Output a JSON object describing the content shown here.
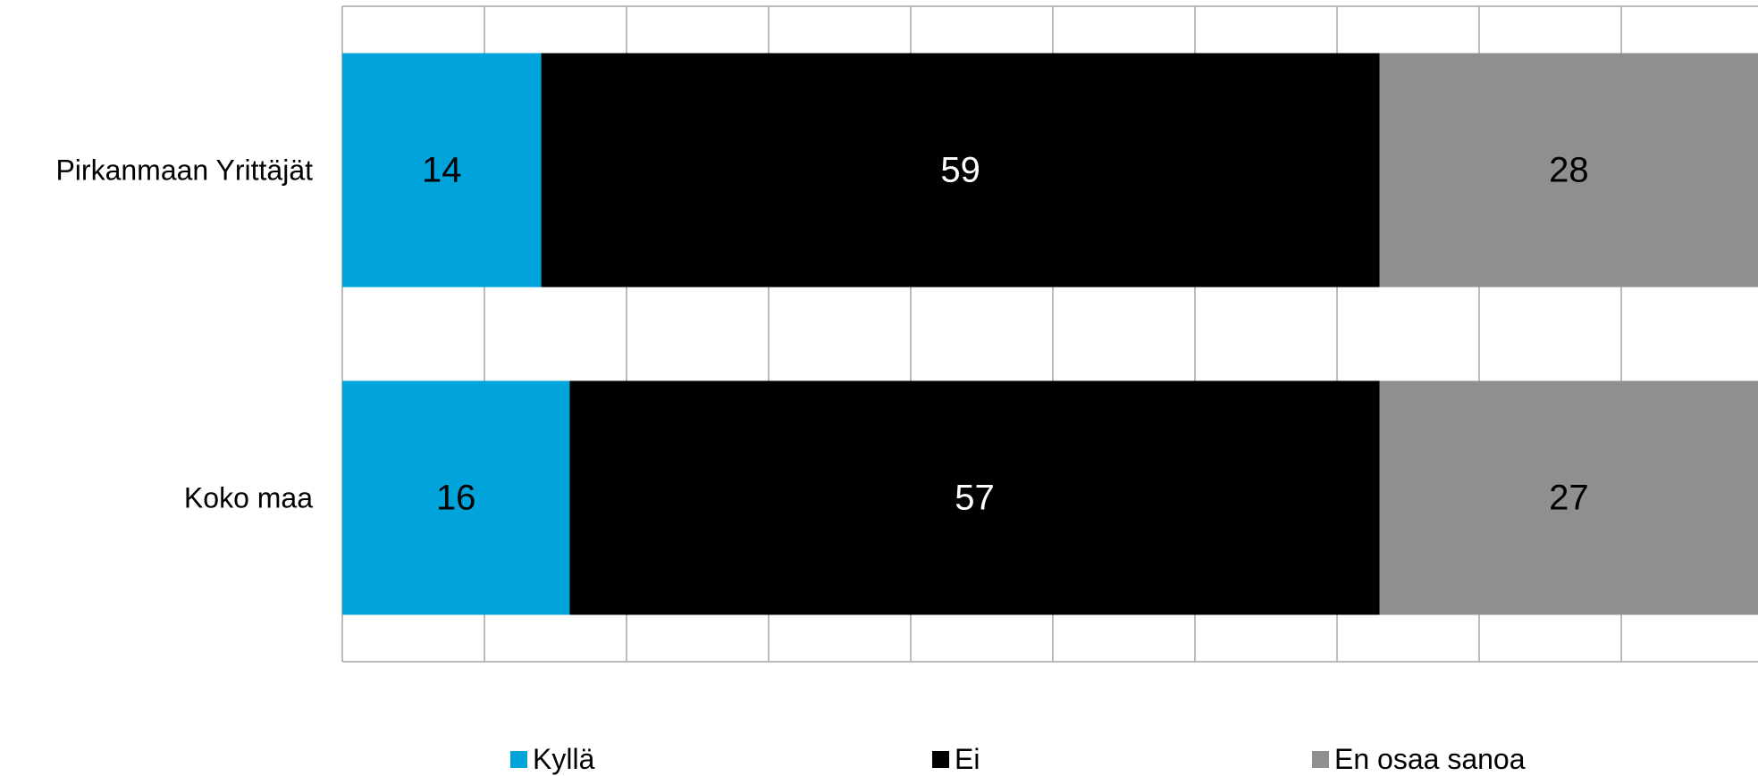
{
  "chart_data": {
    "type": "bar",
    "orientation": "horizontal",
    "stacked": true,
    "categories": [
      "Pirkanmaan Yrittäjät",
      "Koko maa"
    ],
    "series": [
      {
        "name": "Kyllä",
        "values": [
          14,
          16
        ],
        "color": "#00A3DA",
        "label_color": "#000000"
      },
      {
        "name": "Ei",
        "values": [
          59,
          57
        ],
        "color": "#000000",
        "label_color": "#FFFFFF"
      },
      {
        "name": "En osaa sanoa",
        "values": [
          28,
          27
        ],
        "color": "#8F8F8F",
        "label_color": "#000000"
      }
    ],
    "xlim": [
      0,
      100
    ],
    "grid": true,
    "legend_position": "bottom"
  }
}
